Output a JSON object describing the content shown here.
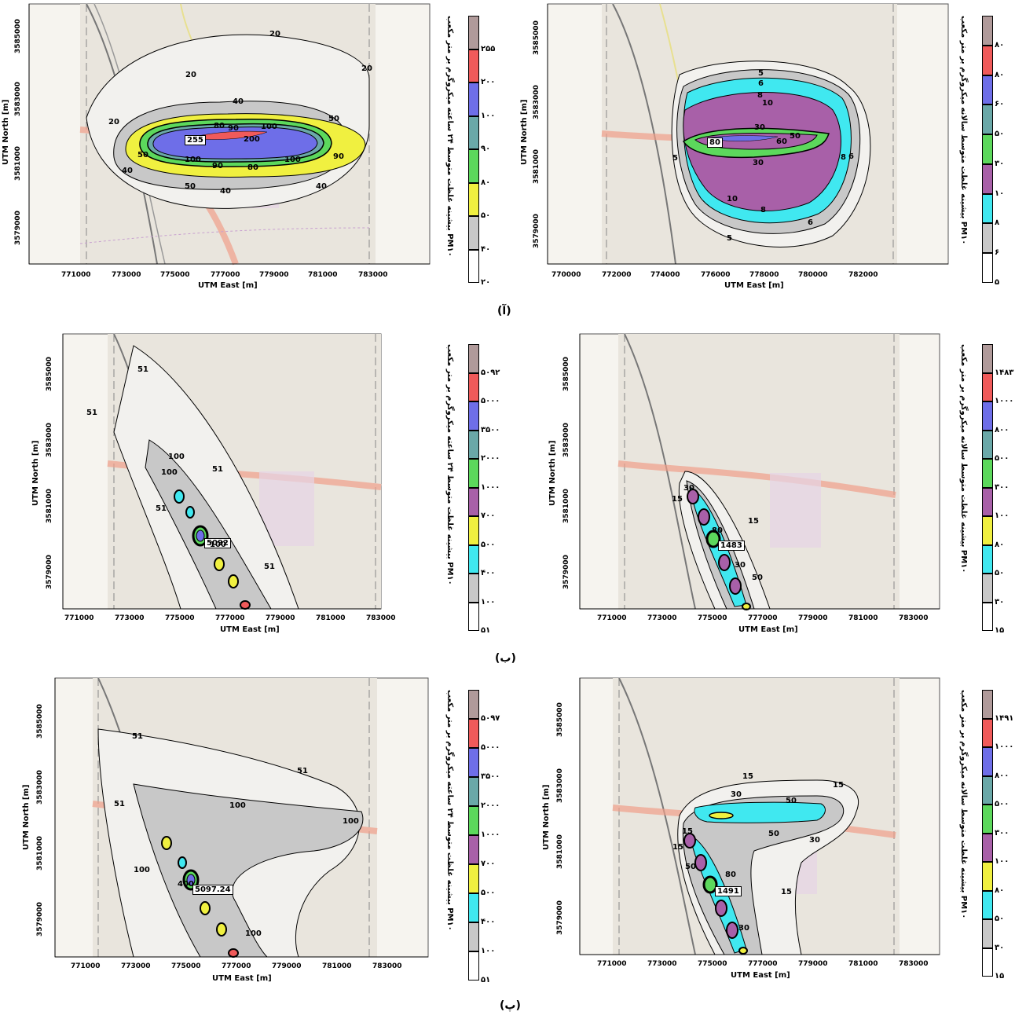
{
  "axes": {
    "y_title": "UTM North [m]",
    "x_title": "UTM East [m]",
    "y_ticks": [
      "3579000",
      "3581000",
      "3583000",
      "3585000"
    ],
    "x_ticks_a": [
      "771000",
      "773000",
      "775000",
      "777000",
      "779000",
      "781000",
      "783000"
    ],
    "x_ticks_b": [
      "770000",
      "772000",
      "774000",
      "776000",
      "778000",
      "780000",
      "782000"
    ]
  },
  "captions": {
    "row1": "(آ)",
    "row2": "(ب)",
    "row3": "(پ)"
  },
  "panels": [
    {
      "id": "row1-left",
      "peak": "255",
      "contour_labels": [
        "20",
        "20",
        "20",
        "20",
        "40",
        "40",
        "40",
        "40",
        "50",
        "50",
        "50",
        "80",
        "90",
        "100",
        "200",
        "80",
        "100",
        "90",
        "100",
        "90"
      ],
      "legend_values": [
        "۲۵۵",
        "۲۰۰",
        "۱۰۰",
        "۹۰",
        "۸۰",
        "۵۰",
        "۴۰",
        "۲۰"
      ],
      "legend_title": "PM۱۰ بیشینه غلظت متوسط ۲۴ ساعته میکروگرم بر متر مکعب",
      "legend_colors": [
        "#b09a9a",
        "#f05a5a",
        "#6e6ee8",
        "#6aa8a8",
        "#5cd85c",
        "#f0f040",
        "#c8c8c8",
        "#ffffff"
      ]
    },
    {
      "id": "row1-right",
      "peak": "80",
      "contour_labels": [
        "5",
        "6",
        "8",
        "10",
        "30",
        "50",
        "60",
        "30",
        "8",
        "6",
        "10",
        "8",
        "6",
        "5",
        "5"
      ],
      "legend_values": [
        "۸۰",
        "۸۰",
        "۶۰",
        "۵۰",
        "۳۰",
        "۱۰",
        "۸",
        "۶",
        "۵"
      ],
      "legend_title": "PM۱۰ بیشینه غلظت متوسط سالانه میکروگرم بر متر مکعب",
      "legend_colors": [
        "#b09a9a",
        "#f05a5a",
        "#6e6ee8",
        "#6aa8a8",
        "#5cd85c",
        "#a860a8",
        "#40e8f0",
        "#c8c8c8",
        "#ffffff"
      ]
    },
    {
      "id": "row2-left",
      "peak": "5092",
      "contour_labels": [
        "51",
        "51",
        "51",
        "100",
        "100",
        "51",
        "100",
        "51"
      ],
      "legend_values": [
        "۵۰۹۲",
        "۵۰۰۰",
        "۳۵۰۰",
        "۲۰۰۰",
        "۱۰۰۰",
        "۷۰۰",
        "۵۰۰",
        "۴۰۰",
        "۱۰۰",
        "۵۱"
      ],
      "legend_title": "PM۱۰ بیشینه غلظت متوسط ۲۴ ساعته میکروگرم بر متر مکعب",
      "legend_colors": [
        "#b09a9a",
        "#f05a5a",
        "#6e6ee8",
        "#6aa8a8",
        "#5cd85c",
        "#a860a8",
        "#f0f040",
        "#40e8f0",
        "#c8c8c8",
        "#ffffff"
      ]
    },
    {
      "id": "row2-right",
      "peak": "1483",
      "contour_labels": [
        "30",
        "15",
        "15",
        "30",
        "50",
        "80"
      ],
      "legend_values": [
        "۱۴۸۳",
        "۱۰۰۰",
        "۸۰۰",
        "۵۰۰",
        "۳۰۰",
        "۱۰۰",
        "۸۰",
        "۵۰",
        "۳۰",
        "۱۵"
      ],
      "legend_title": "PM۱۰ بیشینه غلظت متوسط سالانه میکروگرم بر متر مکعب",
      "legend_colors": [
        "#b09a9a",
        "#f05a5a",
        "#6e6ee8",
        "#6aa8a8",
        "#5cd85c",
        "#a860a8",
        "#f0f040",
        "#40e8f0",
        "#c8c8c8",
        "#ffffff"
      ]
    },
    {
      "id": "row3-left",
      "peak": "5097.24",
      "contour_labels": [
        "51",
        "51",
        "51",
        "100",
        "100",
        "100",
        "100",
        "400"
      ],
      "legend_values": [
        "۵۰۹۷",
        "۵۰۰۰",
        "۳۵۰۰",
        "۲۰۰۰",
        "۱۰۰۰",
        "۷۰۰",
        "۵۰۰",
        "۴۰۰",
        "۱۰۰",
        "۵۱"
      ],
      "legend_title": "PM۱۰ بیشینه غلظت متوسط ۲۴ ساعته میکروگرم بر متر مکعب",
      "legend_colors": [
        "#b09a9a",
        "#f05a5a",
        "#6e6ee8",
        "#6aa8a8",
        "#5cd85c",
        "#a860a8",
        "#f0f040",
        "#40e8f0",
        "#c8c8c8",
        "#ffffff"
      ]
    },
    {
      "id": "row3-right",
      "peak": "1491",
      "contour_labels": [
        "15",
        "15",
        "30",
        "50",
        "50",
        "30",
        "15",
        "15",
        "50",
        "80",
        "30",
        "15"
      ],
      "legend_values": [
        "۱۴۹۱",
        "۱۰۰۰",
        "۸۰۰",
        "۵۰۰",
        "۳۰۰",
        "۱۰۰",
        "۸۰",
        "۵۰",
        "۳۰",
        "۱۵"
      ],
      "legend_title": "PM۱۰ بیشینه غلظت متوسط سالانه میکروگرم بر متر مکعب",
      "legend_colors": [
        "#b09a9a",
        "#f05a5a",
        "#6e6ee8",
        "#6aa8a8",
        "#5cd85c",
        "#a860a8",
        "#f0f040",
        "#40e8f0",
        "#c8c8c8",
        "#ffffff"
      ]
    }
  ]
}
